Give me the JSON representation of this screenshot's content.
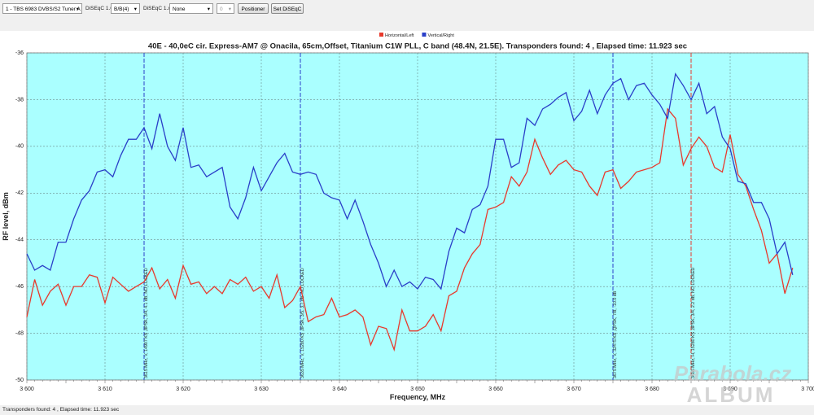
{
  "toolbar": {
    "tuner": "1 - TBS 6983 DVBS/S2 Tuner A",
    "diseqc10_label": "DiSEqC 1.0:",
    "diseqc10": "B/B(4)",
    "diseqc1x_label": "DiSEqC 1.x:",
    "diseqc1x": "None",
    "position": 0,
    "positioner": "Positioner",
    "set_diseqc": "Set DiSEqC"
  },
  "chart_data": {
    "type": "line",
    "title": "40E - 40,0eC cir. Express-AM7 @ Onacila, 65cm,Offset, Titanium C1W PLL, C band (48.4N, 21.5E). Transponders found: 4 , Elapsed time: 11.923 sec",
    "xlabel": "Frequency, MHz",
    "ylabel": "RF level, dBm",
    "x": [
      3600,
      3601,
      3602,
      3603,
      3604,
      3605,
      3606,
      3607,
      3608,
      3609,
      3610,
      3611,
      3612,
      3613,
      3614,
      3615,
      3616,
      3617,
      3618,
      3619,
      3620,
      3621,
      3622,
      3623,
      3624,
      3625,
      3626,
      3627,
      3628,
      3629,
      3630,
      3631,
      3632,
      3633,
      3634,
      3635,
      3636,
      3637,
      3638,
      3639,
      3640,
      3641,
      3642,
      3643,
      3644,
      3645,
      3646,
      3647,
      3648,
      3649,
      3650,
      3651,
      3652,
      3653,
      3654,
      3655,
      3656,
      3657,
      3658,
      3659,
      3660,
      3661,
      3662,
      3663,
      3664,
      3665,
      3666,
      3667,
      3668,
      3669,
      3670,
      3671,
      3672,
      3673,
      3674,
      3675,
      3676,
      3677,
      3678,
      3679,
      3680,
      3681,
      3682,
      3683,
      3684,
      3685,
      3686,
      3687,
      3688,
      3689,
      3690,
      3691,
      3692,
      3693,
      3694,
      3695,
      3696,
      3697,
      3698
    ],
    "series": [
      {
        "name": "Horizontal/Left",
        "color": "#e8392c",
        "values": [
          -47.3,
          -45.7,
          -46.8,
          -46.2,
          -45.9,
          -46.8,
          -46.0,
          -46.0,
          -45.5,
          -45.6,
          -46.7,
          -45.6,
          -45.9,
          -46.2,
          -46.0,
          -45.8,
          -45.2,
          -46.1,
          -45.7,
          -46.5,
          -45.1,
          -45.9,
          -45.8,
          -46.3,
          -46.0,
          -46.3,
          -45.7,
          -45.9,
          -45.6,
          -46.2,
          -46.0,
          -46.5,
          -45.5,
          -46.9,
          -46.6,
          -46.0,
          -47.5,
          -47.3,
          -47.2,
          -46.5,
          -47.3,
          -47.2,
          -47.0,
          -47.3,
          -48.5,
          -47.7,
          -47.8,
          -48.7,
          -47.0,
          -47.9,
          -47.9,
          -47.7,
          -47.2,
          -47.9,
          -46.4,
          -46.2,
          -45.2,
          -44.6,
          -44.2,
          -42.7,
          -42.6,
          -42.4,
          -41.3,
          -41.7,
          -41.1,
          -39.7,
          -40.5,
          -41.2,
          -40.8,
          -40.6,
          -41.0,
          -41.1,
          -41.7,
          -42.1,
          -41.1,
          -41.0,
          -41.8,
          -41.5,
          -41.1,
          -41.0,
          -40.9,
          -40.7,
          -38.4,
          -38.8,
          -40.8,
          -40.1,
          -39.6,
          -40.0,
          -40.9,
          -41.1,
          -39.5,
          -41.2,
          -41.7,
          -42.7,
          -43.6,
          -45.0,
          -44.6,
          -46.3,
          -45.2
        ]
      },
      {
        "name": "Vertical/Right",
        "color": "#2a3fc8",
        "values": [
          -44.6,
          -45.3,
          -45.1,
          -45.3,
          -44.1,
          -44.1,
          -43.1,
          -42.3,
          -41.9,
          -41.1,
          -41.0,
          -41.3,
          -40.4,
          -39.7,
          -39.7,
          -39.2,
          -40.1,
          -38.6,
          -40.0,
          -40.6,
          -39.2,
          -40.9,
          -40.8,
          -41.3,
          -41.1,
          -40.9,
          -42.6,
          -43.1,
          -42.2,
          -40.9,
          -41.9,
          -41.3,
          -40.7,
          -40.3,
          -41.1,
          -41.2,
          -41.1,
          -41.2,
          -42.0,
          -42.2,
          -42.3,
          -43.1,
          -42.3,
          -43.2,
          -44.2,
          -45.0,
          -46.0,
          -45.3,
          -46.0,
          -45.8,
          -46.1,
          -45.6,
          -45.7,
          -46.1,
          -44.5,
          -43.5,
          -43.7,
          -42.7,
          -42.5,
          -41.7,
          -39.7,
          -39.7,
          -40.9,
          -40.7,
          -38.8,
          -39.1,
          -38.4,
          -38.2,
          -37.9,
          -37.7,
          -38.9,
          -38.5,
          -37.6,
          -38.6,
          -37.8,
          -37.3,
          -37.1,
          -38.0,
          -37.4,
          -37.3,
          -37.8,
          -38.2,
          -38.8,
          -36.9,
          -37.4,
          -38.0,
          -37.3,
          -38.6,
          -38.3,
          -39.6,
          -40.1,
          -41.5,
          -41.6,
          -42.4,
          -42.4,
          -43.1,
          -44.6,
          -44.1,
          -45.5
        ]
      }
    ],
    "markers": [
      {
        "freq": 3615,
        "color": "#2a3fc8",
        "label": "3615 MHz, V, 14907 KS ,8PSK, 3/4, 4.1 dB, NO LOCKED"
      },
      {
        "freq": 3635,
        "color": "#2a3fc8",
        "label": "3635 MHz, V, 15280 KS ,8PSK, 3/5, 3.7 dB, NO LOCKED"
      },
      {
        "freq": 3675,
        "color": "#2a3fc8",
        "label": "3675 MHz, V, 32475 KS ,QPSK, 7/8, -10.0 dB"
      },
      {
        "freq": 3685,
        "color": "#e8392c",
        "label": "3685 MHz, H, 15280 KS ,8PSK, 3/4, 2.2 dB, NO LOCKED"
      }
    ],
    "xlim": [
      3600,
      3700
    ],
    "xticks": [
      {
        "value": 3600,
        "label": "3 600"
      },
      {
        "value": 3610,
        "label": "3 610"
      },
      {
        "value": 3620,
        "label": "3 620"
      },
      {
        "value": 3630,
        "label": "3 630"
      },
      {
        "value": 3640,
        "label": "3 640"
      },
      {
        "value": 3650,
        "label": "3 650"
      },
      {
        "value": 3660,
        "label": "3 660"
      },
      {
        "value": 3670,
        "label": "3 670"
      },
      {
        "value": 3680,
        "label": "3 680"
      },
      {
        "value": 3690,
        "label": "3 690"
      },
      {
        "value": 3700,
        "label": "3 700"
      }
    ],
    "ylim": [
      -50,
      -36
    ],
    "yticks": [
      -50,
      -48,
      -46,
      -44,
      -42,
      -40,
      -38,
      -36
    ],
    "grid": true,
    "legend": "top",
    "plot_background": "#aaffff"
  },
  "status": "Transponders found: 4 , Elapsed time: 11.923 sec",
  "watermark": {
    "line1": "Parabola.cz",
    "line2": "ALBUM"
  }
}
